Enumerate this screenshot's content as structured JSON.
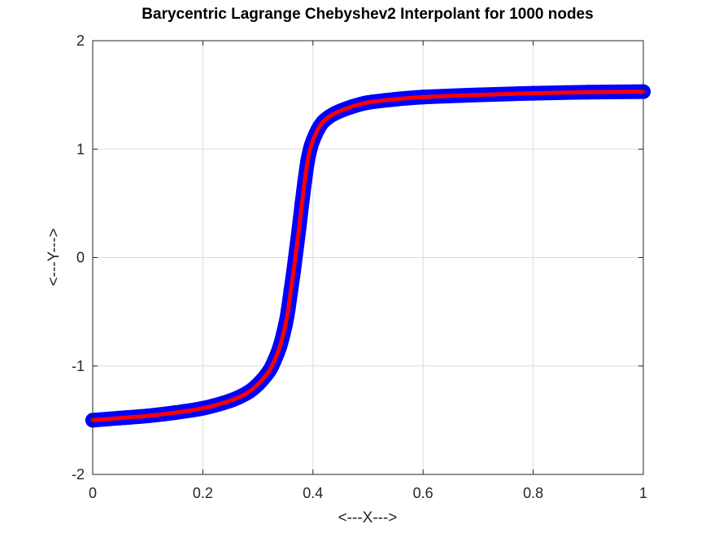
{
  "chart_data": {
    "type": "line",
    "title": "Barycentric Lagrange Chebyshev2 Interpolant for 1000 nodes",
    "xlabel": "<---X--->",
    "ylabel": "<---Y--->",
    "xlim": [
      0,
      1
    ],
    "ylim": [
      -2,
      2
    ],
    "xticks": [
      "0",
      "0.2",
      "0.4",
      "0.6",
      "0.8",
      "1"
    ],
    "yticks": [
      "-2",
      "-1",
      "0",
      "1",
      "2"
    ],
    "grid": true,
    "legend": "none",
    "series": [
      {
        "style": "thick-markers",
        "color": "#0000ff",
        "x": [
          0,
          0.05,
          0.1,
          0.15,
          0.2,
          0.25,
          0.28,
          0.3,
          0.32,
          0.33,
          0.34,
          0.35,
          0.355,
          0.36,
          0.365,
          0.37,
          0.375,
          0.38,
          0.385,
          0.39,
          0.395,
          0.4,
          0.41,
          0.42,
          0.44,
          0.47,
          0.5,
          0.55,
          0.6,
          0.7,
          0.8,
          0.9,
          1.0
        ],
        "y": [
          -1.5,
          -1.48,
          -1.46,
          -1.43,
          -1.39,
          -1.32,
          -1.25,
          -1.17,
          -1.05,
          -0.95,
          -0.82,
          -0.62,
          -0.48,
          -0.3,
          -0.12,
          0.08,
          0.28,
          0.5,
          0.7,
          0.88,
          1.0,
          1.08,
          1.19,
          1.26,
          1.33,
          1.39,
          1.43,
          1.46,
          1.48,
          1.5,
          1.515,
          1.525,
          1.53
        ]
      },
      {
        "style": "line",
        "color": "#ff0000",
        "x": [
          0,
          0.05,
          0.1,
          0.15,
          0.2,
          0.25,
          0.28,
          0.3,
          0.32,
          0.33,
          0.34,
          0.35,
          0.355,
          0.36,
          0.365,
          0.37,
          0.375,
          0.38,
          0.385,
          0.39,
          0.395,
          0.4,
          0.41,
          0.42,
          0.44,
          0.47,
          0.5,
          0.55,
          0.6,
          0.7,
          0.8,
          0.9,
          1.0
        ],
        "y": [
          -1.5,
          -1.48,
          -1.46,
          -1.43,
          -1.39,
          -1.32,
          -1.25,
          -1.17,
          -1.05,
          -0.95,
          -0.82,
          -0.62,
          -0.48,
          -0.3,
          -0.12,
          0.08,
          0.28,
          0.5,
          0.7,
          0.88,
          1.0,
          1.08,
          1.19,
          1.26,
          1.33,
          1.39,
          1.43,
          1.46,
          1.48,
          1.5,
          1.515,
          1.525,
          1.53
        ]
      }
    ]
  }
}
